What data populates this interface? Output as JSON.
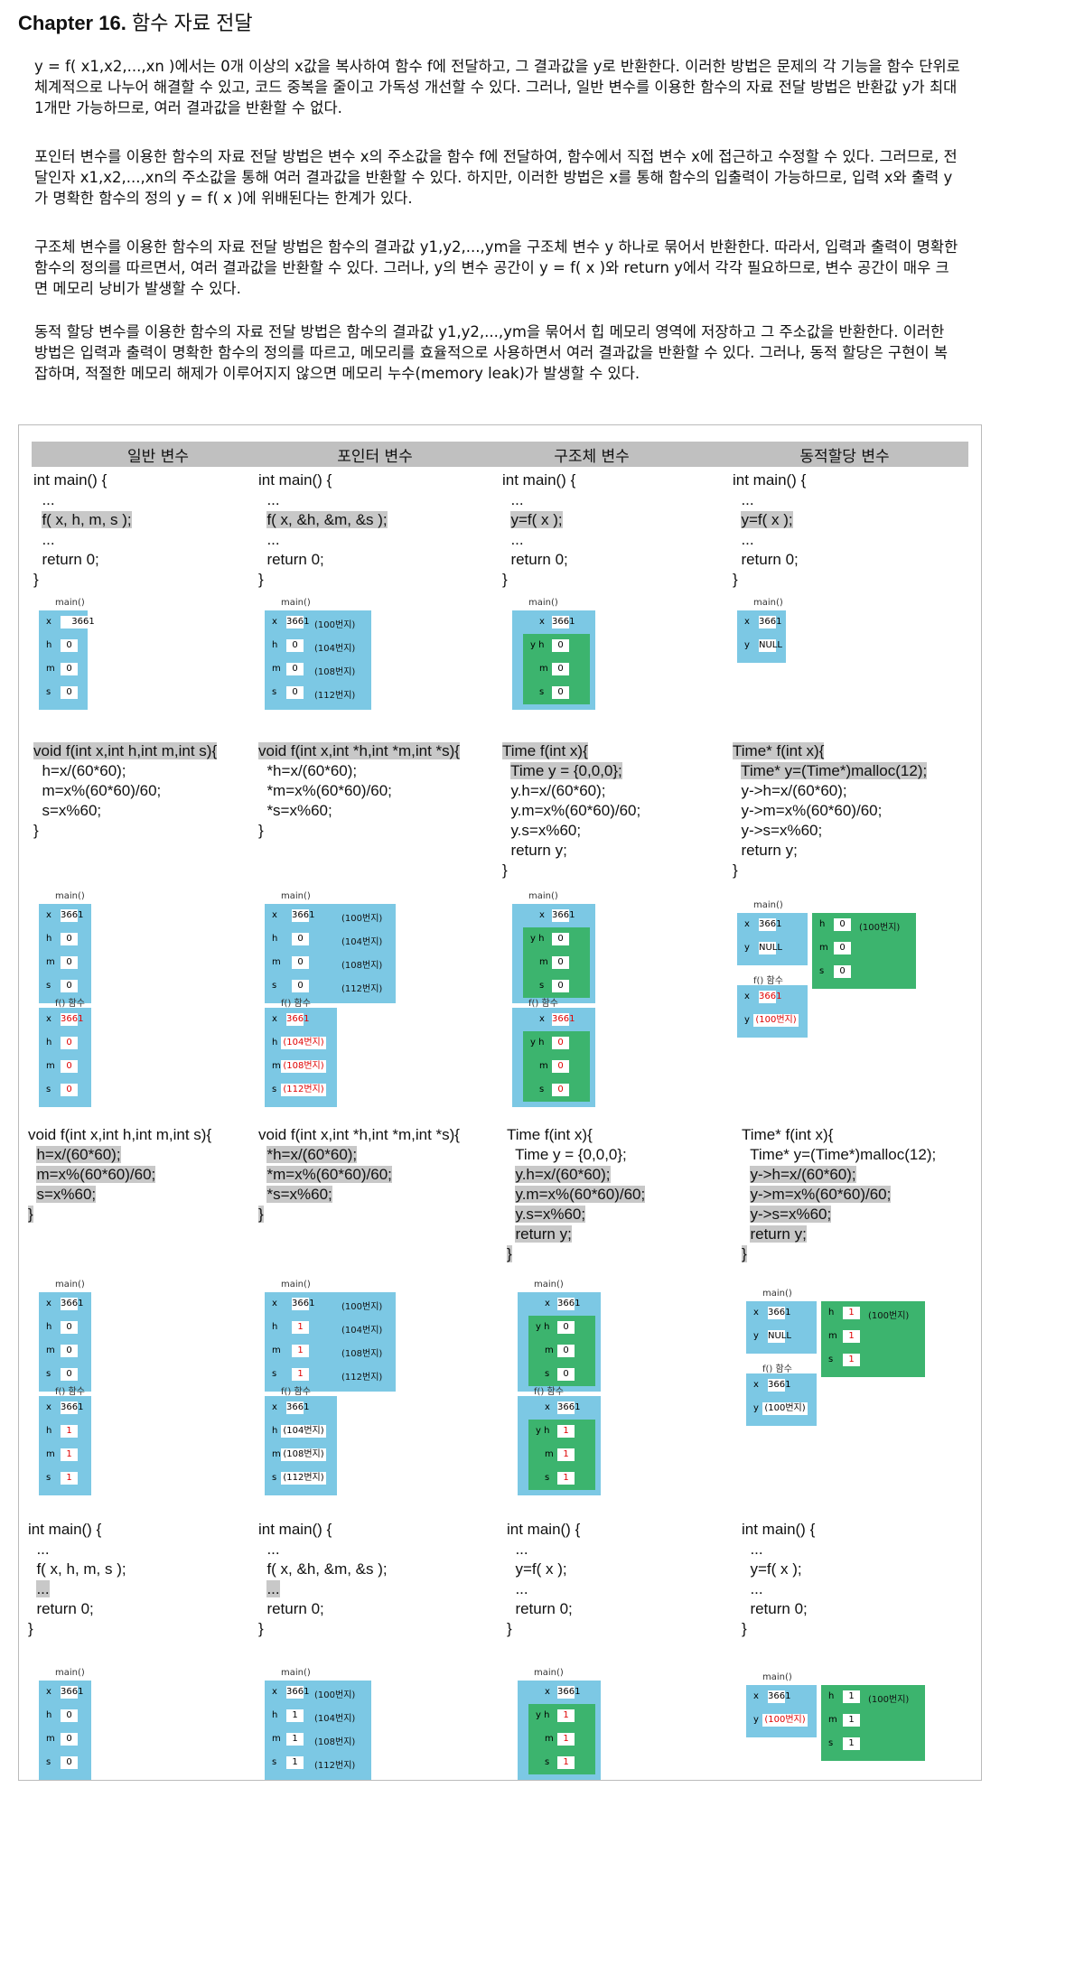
{
  "title": {
    "chapter": "Chapter 16.",
    "name": "함수 자료 전달"
  },
  "paragraphs": [
    "y = f( x1,x2,...,xn )에서는 0개 이상의 x값을 복사하여 함수 f에 전달하고, 그 결과값을 y로 반환한다. 이러한 방법은 문제의 각 기능을 함수 단위로 체계적으로 나누어 해결할 수 있고, 코드 중복을 줄이고 가독성 개선할 수 있다. 그러나, 일반 변수를 이용한 함수의 자료 전달 방법은 반환값 y가 최대 1개만 가능하므로, 여러 결과값을 반환할 수 없다.",
    "포인터 변수를 이용한 함수의 자료 전달 방법은 변수 x의 주소값을 함수 f에 전달하여, 함수에서 직접 변수 x에 접근하고 수정할 수 있다. 그러므로, 전달인자 x1,x2,...,xn의 주소값을 통해 여러 결과값을 반환할 수 있다. 하지만, 이러한 방법은 x를 통해 함수의 입출력이 가능하므로, 입력 x와 출력 y가 명확한 함수의 정의 y = f( x )에 위배된다는 한계가 있다.",
    "구조체 변수를 이용한 함수의 자료 전달 방법은 함수의 결과값 y1,y2,...,ym을 구조체 변수 y 하나로 묶어서 반환한다. 따라서, 입력과 출력이 명확한 함수의 정의를 따르면서, 여러 결과값을 반환할 수 있다. 그러나, y의 변수 공간이 y = f( x )와 return y에서 각각 필요하므로, 변수 공간이 매우 크면 메모리 낭비가 발생할 수 있다.",
    "동적 할당 변수를 이용한 함수의 자료 전달 방법은 함수의 결과값 y1,y2,...,ym을 묶어서 힙 메모리 영역에 저장하고 그 주소값을 반환한다. 이러한 방법은 입력과 출력이 명확한 함수의 정의를 따르고, 메모리를 효율적으로 사용하면서 여러 결과값을 반환할 수 있다. 그러나, 동적 할당은 구현이 복잡하며, 적절한 메모리 해제가 이루어지지 않으면 메모리 누수(memory leak)가 발생할 수 있다."
  ],
  "columns": [
    "일반 변수",
    "포인터 변수",
    "구조체 변수",
    "동적할당 변수"
  ],
  "labels": {
    "main": "main()",
    "f": "f() 함수",
    "x": "x",
    "h": "h",
    "m": "m",
    "s": "s",
    "y": "y",
    "yh": "y h",
    "null": "NULL"
  },
  "values": {
    "x": "3661",
    "zero": "0",
    "one": "1"
  },
  "addrs": {
    "a100": "(100번지)",
    "a104": "(104번지)",
    "a108": "(108번지)",
    "a112": "(112번지)"
  },
  "code": {
    "main1": [
      "int main() {",
      "  ...",
      "  f( x, h, m, s );",
      "  ...",
      "  return 0;",
      "}"
    ],
    "main2": [
      "int main() {",
      "  ...",
      "  f( x, &h, &m, &s );",
      "  ...",
      "  return 0;",
      "}"
    ],
    "main3": [
      "int main() {",
      "  ...",
      "  y=f( x );",
      "  ...",
      "  return 0;",
      "}"
    ],
    "main4": [
      "int main() {",
      "  ...",
      "  y=f( x );",
      "  ...",
      "  return 0;",
      "}"
    ],
    "f1": [
      "void f(int x,int h,int m,int s){",
      "  h=x/(60*60);",
      "  m=x%(60*60)/60;",
      "  s=x%60;",
      "}"
    ],
    "f2": [
      "void f(int x,int *h,int *m,int *s){",
      "  *h=x/(60*60);",
      "  *m=x%(60*60)/60;",
      "  *s=x%60;",
      "}"
    ],
    "f3": [
      "Time f(int x){",
      "  Time y = {0,0,0};",
      "  y.h=x/(60*60);",
      "  y.m=x%(60*60)/60;",
      "  y.s=x%60;",
      "  return y;",
      "}"
    ],
    "f4": [
      "Time* f(int x){",
      "  Time* y=(Time*)malloc(12);",
      "  y->h=x/(60*60);",
      "  y->m=x%(60*60)/60;",
      "  y->s=x%60;",
      "  return y;",
      "}"
    ]
  }
}
